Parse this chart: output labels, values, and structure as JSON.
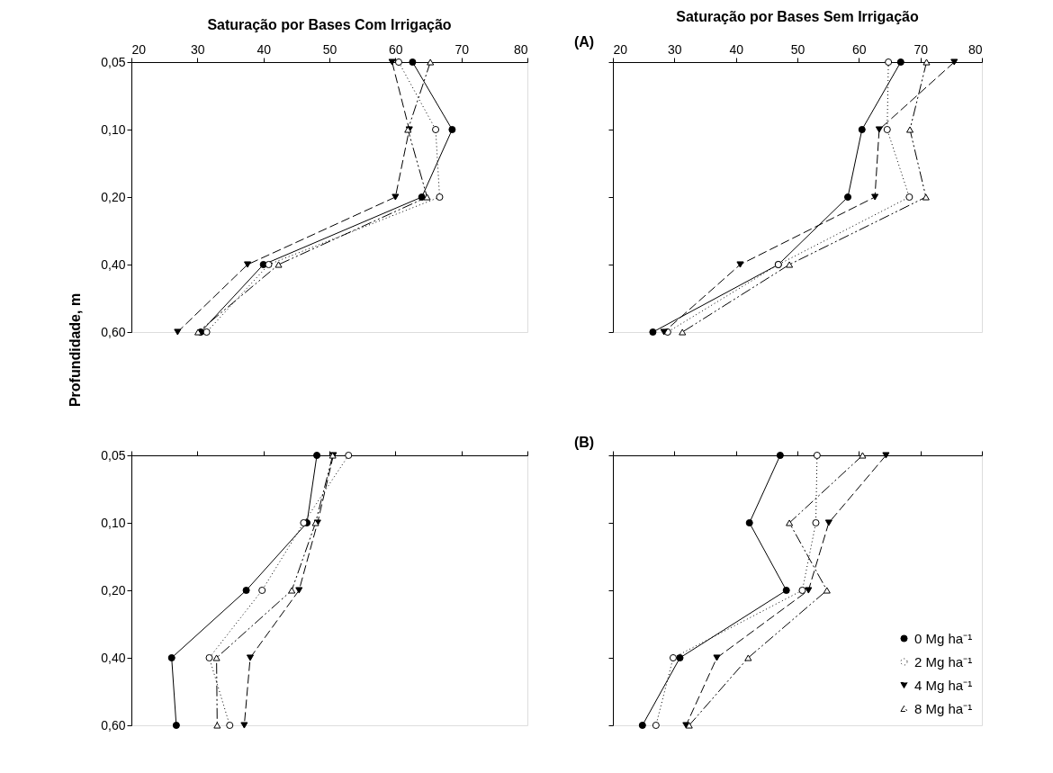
{
  "chart_data": [
    {
      "type": "line",
      "orientation": "horizontal",
      "title": "Saturação por Bases Com Irrigação",
      "ylabel": "Profundidade, m",
      "categories": [
        "0,05",
        "0,10",
        "0,20",
        "0,40",
        "0,60"
      ],
      "xlim": [
        20,
        80
      ],
      "xticks": [
        20,
        30,
        40,
        50,
        60,
        70,
        80
      ],
      "grid": false,
      "legend": false,
      "series": [
        {
          "color": "#000000",
          "marker": "circle",
          "line_style": "solid",
          "values": [
            62.6,
            68.6,
            64.0,
            40.0,
            30.5
          ]
        },
        {
          "color": "#000000",
          "marker": "circle-open",
          "line_style": "dotted",
          "values": [
            60.5,
            66.1,
            66.7,
            40.8,
            31.4
          ]
        },
        {
          "color": "#000000",
          "marker": "triangle-down",
          "line_style": "dashed",
          "values": [
            59.5,
            62.1,
            60.0,
            37.6,
            27.0
          ]
        },
        {
          "color": "#000000",
          "marker": "triangle-open",
          "line_style": "dashdot",
          "values": [
            65.3,
            61.9,
            64.8,
            42.3,
            30.1
          ]
        }
      ]
    },
    {
      "type": "line",
      "orientation": "horizontal",
      "title": "Saturação por Bases Sem Irrigação",
      "annotations": [
        "(A)"
      ],
      "categories": [
        "0,05",
        "0,10",
        "0,20",
        "0,40",
        "0,60"
      ],
      "xlim": [
        20,
        80
      ],
      "xticks": [
        20,
        30,
        40,
        50,
        60,
        70,
        80
      ],
      "tick_labels": "x",
      "grid": false,
      "legend": false,
      "series": [
        {
          "color": "#000000",
          "marker": "circle",
          "line_style": "solid",
          "values": [
            66.8,
            60.5,
            58.2,
            46.9,
            26.5
          ]
        },
        {
          "color": "#000000",
          "marker": "circle-open",
          "line_style": "dotted",
          "values": [
            64.8,
            64.6,
            68.2,
            46.9,
            28.9
          ]
        },
        {
          "color": "#000000",
          "marker": "triangle-down",
          "line_style": "dashed",
          "values": [
            75.5,
            63.3,
            62.6,
            40.7,
            28.3
          ]
        },
        {
          "color": "#000000",
          "marker": "triangle-open",
          "line_style": "dashdot",
          "values": [
            71.0,
            68.3,
            70.9,
            48.7,
            31.3
          ]
        }
      ]
    },
    {
      "type": "line",
      "orientation": "horizontal",
      "categories": [
        "0,05",
        "0,10",
        "0,20",
        "0,40",
        "0,60"
      ],
      "xlim": [
        20,
        80
      ],
      "xticks": [
        20,
        30,
        40,
        50,
        60,
        70,
        80
      ],
      "tick_labels": "y",
      "grid": false,
      "legend": false,
      "series": [
        {
          "color": "#000000",
          "marker": "circle",
          "line_style": "solid",
          "values": [
            48.1,
            46.6,
            37.4,
            26.1,
            26.8
          ]
        },
        {
          "color": "#000000",
          "marker": "circle-open",
          "line_style": "dotted",
          "values": [
            52.9,
            46.1,
            39.8,
            31.8,
            34.9
          ]
        },
        {
          "color": "#000000",
          "marker": "triangle-down",
          "line_style": "dashed",
          "values": [
            50.6,
            48.2,
            45.4,
            38.0,
            37.1
          ]
        },
        {
          "color": "#000000",
          "marker": "triangle-open",
          "line_style": "dashdot",
          "values": [
            50.5,
            47.9,
            44.3,
            32.9,
            33.0
          ]
        }
      ]
    },
    {
      "type": "line",
      "orientation": "horizontal",
      "annotations": [
        "(B)"
      ],
      "categories": [
        "0,05",
        "0,10",
        "0,20",
        "0,40",
        "0,60"
      ],
      "xlim": [
        20,
        80
      ],
      "xticks": [
        20,
        30,
        40,
        50,
        60,
        70,
        80
      ],
      "tick_labels": false,
      "grid": false,
      "legend": "bottom right",
      "series": [
        {
          "name": "0 Mg ha⁻¹",
          "color": "#000000",
          "marker": "circle",
          "line_style": "solid",
          "values": [
            47.2,
            42.2,
            48.2,
            30.9,
            24.8
          ]
        },
        {
          "name": "2 Mg ha⁻¹",
          "color": "#000000",
          "marker": "circle-open",
          "line_style": "dotted",
          "values": [
            53.2,
            53.0,
            50.8,
            29.8,
            27.0
          ]
        },
        {
          "name": "4 Mg ha⁻¹",
          "color": "#000000",
          "marker": "triangle-down",
          "line_style": "dashed",
          "values": [
            64.4,
            55.1,
            51.8,
            36.9,
            31.9
          ]
        },
        {
          "name": "8 Mg ha⁻¹",
          "color": "#000000",
          "marker": "triangle-open",
          "line_style": "dashdot",
          "values": [
            60.6,
            48.7,
            54.8,
            42.0,
            32.4
          ]
        }
      ]
    }
  ]
}
